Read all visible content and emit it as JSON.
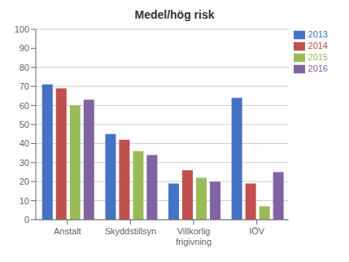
{
  "chart_data": {
    "type": "bar",
    "title": "Medel/hög risk",
    "categories": [
      "Anstalt",
      "Skyddstillsyn",
      "Villkorlig\nfrigivning",
      "IÖV"
    ],
    "series": [
      {
        "name": "2013",
        "color": "#4472C4",
        "values": [
          71,
          45,
          19,
          64
        ]
      },
      {
        "name": "2014",
        "color": "#C0504D",
        "values": [
          69,
          42,
          26,
          19
        ]
      },
      {
        "name": "2015",
        "color": "#9BBB59",
        "values": [
          60,
          36,
          22,
          7
        ]
      },
      {
        "name": "2016",
        "color": "#8064A2",
        "values": [
          63,
          34,
          20,
          25
        ]
      }
    ],
    "ylim": [
      0,
      100
    ],
    "yticks": [
      0,
      10,
      20,
      30,
      40,
      50,
      60,
      70,
      80,
      90,
      100
    ],
    "grid": true,
    "legend": "upper right"
  }
}
